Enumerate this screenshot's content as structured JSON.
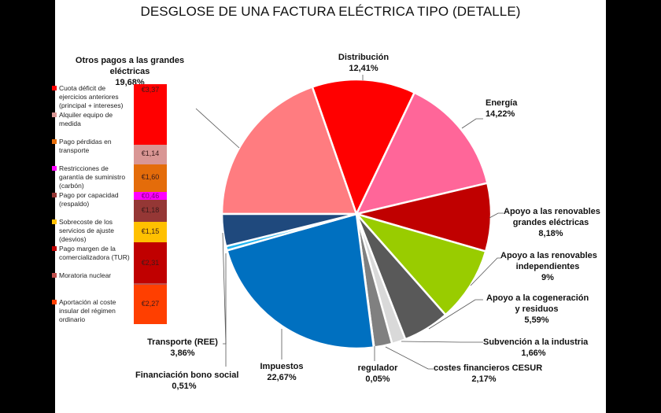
{
  "title": "DESGLOSE DE UNA FACTURA ELÉCTRICA TIPO (DETALLE)",
  "chart_data": [
    {
      "type": "pie",
      "title": "DESGLOSE DE UNA FACTURA ELÉCTRICA TIPO (DETALLE)",
      "start_angle_deg": 180,
      "direction": "clockwise",
      "slices": [
        {
          "label": "Otros pagos a las grandes eléctricas",
          "value": 19.68,
          "display": "19,68%",
          "color": "#FF7C80"
        },
        {
          "label": "Distribución",
          "value": 12.41,
          "display": "12,41%",
          "color": "#FF0000"
        },
        {
          "label": "Energía",
          "value": 14.22,
          "display": "14,22%",
          "color": "#FF6699"
        },
        {
          "label": "Apoyo a las renovables grandes eléctricas",
          "value": 8.18,
          "display": "8,18%",
          "color": "#C00000"
        },
        {
          "label": "Apoyo a las renovables independientes",
          "value": 9,
          "display": "9%",
          "color": "#99CC00"
        },
        {
          "label": "Apoyo a la cogeneración y residuos",
          "value": 5.59,
          "display": "5,59%",
          "color": "#595959"
        },
        {
          "label": "Subvención a la industria",
          "value": 1.66,
          "display": "1,66%",
          "color": "#D9D9D9"
        },
        {
          "label": "costes financieros CESUR",
          "value": 2.17,
          "display": "2,17%",
          "color": "#808080"
        },
        {
          "label": "regulador",
          "value": 0.05,
          "display": "0,05%",
          "color": "#9DC3E6"
        },
        {
          "label": "Impuestos",
          "value": 22.67,
          "display": "22,67%",
          "color": "#0070C0"
        },
        {
          "label": "Financiación bono social",
          "value": 0.51,
          "display": "0,51%",
          "color": "#1FB4F0"
        },
        {
          "label": "Transporte (REE)",
          "value": 3.86,
          "display": "3,86%",
          "color": "#1F497D"
        }
      ]
    },
    {
      "type": "bar",
      "stacked": true,
      "title": "Otros pagos a las grandes eléctricas",
      "subtitle": "19,68%",
      "unit": "€",
      "series": [
        {
          "name": "Cuota déficit de ejercicios anteriores (principal + intereses)",
          "value": 3.37,
          "display": "€3,37",
          "color": "#FF0000"
        },
        {
          "name": "Alquiler equipo de medida",
          "value": 1.14,
          "display": "€1,14",
          "color": "#D99694"
        },
        {
          "name": "Pago pérdidas en transporte",
          "value": 1.6,
          "display": "€1,60",
          "color": "#E46C0A"
        },
        {
          "name": "Restricciones de garantía de suministro (carbón)",
          "value": 0.46,
          "display": "€0,46",
          "color": "#FF00FF"
        },
        {
          "name": "Pago por capacidad (respaldo)",
          "value": 1.18,
          "display": "€1,18",
          "color": "#953735"
        },
        {
          "name": "Sobrecoste de los servicios de ajuste (desvíos)",
          "value": 1.15,
          "display": "€1,15",
          "color": "#FFC000"
        },
        {
          "name": "Pago margen de la comercializadora (TUR)",
          "value": 2.31,
          "display": "€2,31",
          "color": "#C00000"
        },
        {
          "name": "Moratoria nuclear",
          "value": 0.05,
          "display": "",
          "color": "#C0504D"
        },
        {
          "name": "Aportación al coste insular del régimen ordinario",
          "value": 2.27,
          "display": "€2,27",
          "color": "#FF3F00"
        }
      ]
    }
  ],
  "pie_labels": {
    "distribucion": {
      "name": "Distribución",
      "pct": "12,41%"
    },
    "energia": {
      "name": "Energía",
      "pct": "14,22%"
    },
    "ren_grandes": {
      "l1": "Apoyo a las renovables",
      "l2": "grandes eléctricas",
      "pct": "8,18%"
    },
    "ren_indep": {
      "l1": "Apoyo a las renovables",
      "l2": "independientes",
      "pct": "9%"
    },
    "cogen": {
      "l1": "Apoyo a la cogeneración",
      "l2": "y residuos",
      "pct": "5,59%"
    },
    "industria": {
      "name": "Subvención a la industria",
      "pct": "1,66%"
    },
    "cesur": {
      "name": "costes financieros CESUR",
      "pct": "2,17%"
    },
    "regulador": {
      "name": "regulador",
      "pct": "0,05%"
    },
    "impuestos": {
      "name": "Impuestos",
      "pct": "22,67%"
    },
    "bono": {
      "name": "Financiación bono social",
      "pct": "0,51%"
    },
    "transporte": {
      "name": "Transporte (REE)",
      "pct": "3,86%"
    }
  },
  "bar_panel": {
    "title": "Otros pagos a las grandes eléctricas",
    "pct": "19,68%",
    "legend": [
      {
        "l1": "Cuota déficit de",
        "l2": "ejercicios anteriores",
        "l3": "(principal + intereses)"
      },
      {
        "l1": "Alquiler equipo de",
        "l2": "medida"
      },
      {
        "l1": "Pago pérdidas en",
        "l2": "transporte"
      },
      {
        "l1": "Restricciones de",
        "l2": "garantía de suministro",
        "l3": "(carbón)"
      },
      {
        "l1": "Pago por capacidad",
        "l2": "(respaldo)"
      },
      {
        "l1": "Sobrecoste de los",
        "l2": "servicios de ajuste",
        "l3": "(desvios)"
      },
      {
        "l1": "Pago margen de la",
        "l2": "comercializadora (TUR)"
      },
      {
        "l1": "Moratoria nuclear"
      },
      {
        "l1": "Aportación al coste",
        "l2": "insular del régimen",
        "l3": "ordinario"
      }
    ],
    "values": [
      "€3,37",
      "€1,14",
      "€1,60",
      "€0,46",
      "€1,18",
      "€1,15",
      "€2,31",
      "",
      "€2,27"
    ]
  }
}
